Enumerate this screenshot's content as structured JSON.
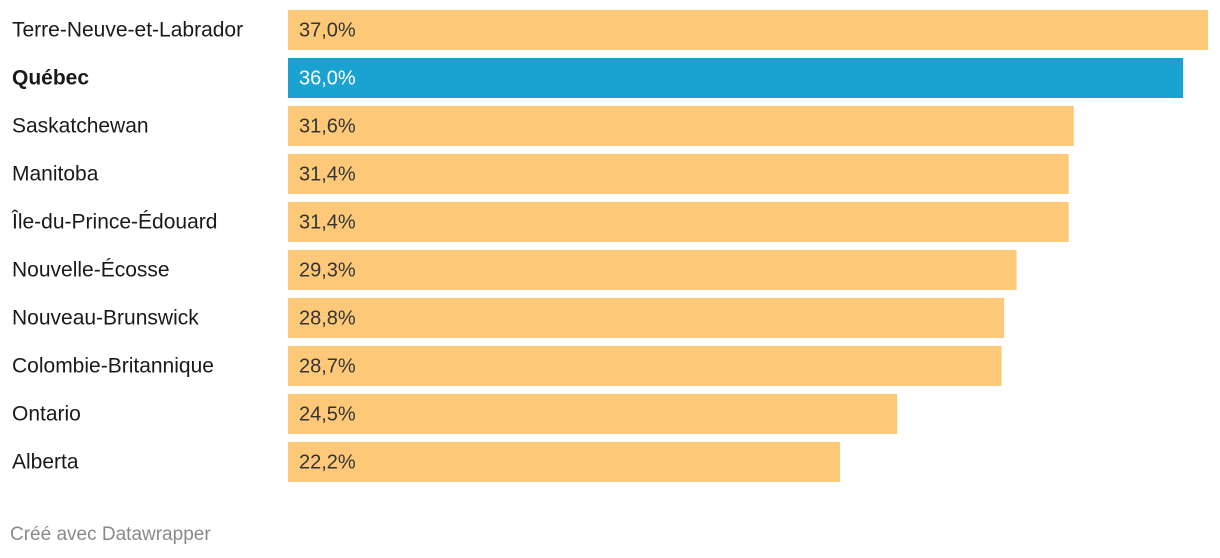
{
  "chart_data": {
    "type": "bar",
    "orientation": "horizontal",
    "categories": [
      "Terre-Neuve-et-Labrador",
      "Québec",
      "Saskatchewan",
      "Manitoba",
      "Île-du-Prince-Édouard",
      "Nouvelle-Écosse",
      "Nouveau-Brunswick",
      "Colombie-Britannique",
      "Ontario",
      "Alberta"
    ],
    "values": [
      37.0,
      36.0,
      31.6,
      31.4,
      31.4,
      29.3,
      28.8,
      28.7,
      24.5,
      22.2
    ],
    "value_labels": [
      "37,0%",
      "36,0%",
      "31,6%",
      "31,4%",
      "31,4%",
      "29,3%",
      "28,8%",
      "28,7%",
      "24,5%",
      "22,2%"
    ],
    "color": "#fdc979",
    "highlight": 1,
    "highlight_color": "#1aa3d0",
    "footer": "Créé avec Datawrapper"
  }
}
